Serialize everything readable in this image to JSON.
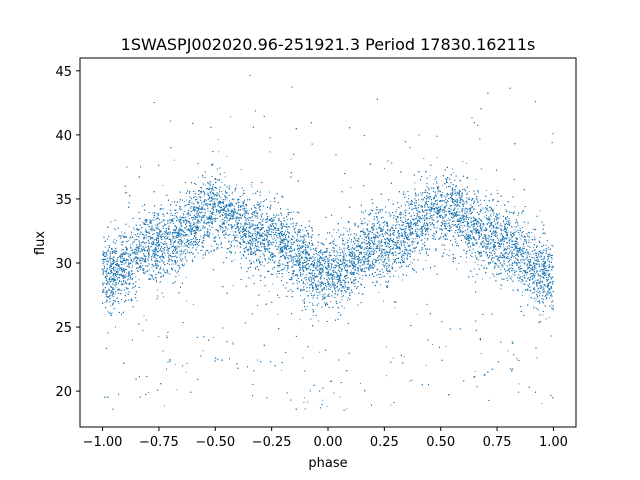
{
  "chart_data": {
    "type": "scatter",
    "title": "1SWASPJ002020.96-251921.3 Period 17830.16211s",
    "xlabel": "phase",
    "ylabel": "flux",
    "xlim": [
      -1.1,
      1.1
    ],
    "ylim": [
      17.2,
      46.0
    ],
    "xticks": [
      -1.0,
      -0.75,
      -0.5,
      -0.25,
      0.0,
      0.25,
      0.5,
      0.75,
      1.0
    ],
    "xtick_labels": [
      "−1.00",
      "−0.75",
      "−0.50",
      "−0.25",
      "0.00",
      "0.25",
      "0.50",
      "0.75",
      "1.00"
    ],
    "yticks": [
      20,
      25,
      30,
      35,
      40,
      45
    ],
    "ytick_labels": [
      "20",
      "25",
      "30",
      "35",
      "40",
      "45"
    ],
    "grid": false,
    "point_color": "#1f77b4",
    "series": [
      {
        "phase_grid": [
          -1.0,
          -0.75,
          -0.5,
          -0.25,
          0.0,
          0.25,
          0.5,
          0.75,
          1.0
        ],
        "median_flux": [
          29.0,
          31.5,
          34.0,
          31.8,
          29.0,
          31.5,
          34.0,
          31.8,
          29.0
        ],
        "band_half_width": 1.9,
        "flux_min": 18.5,
        "flux_max": 44.8,
        "approx_points": 24000
      }
    ]
  }
}
